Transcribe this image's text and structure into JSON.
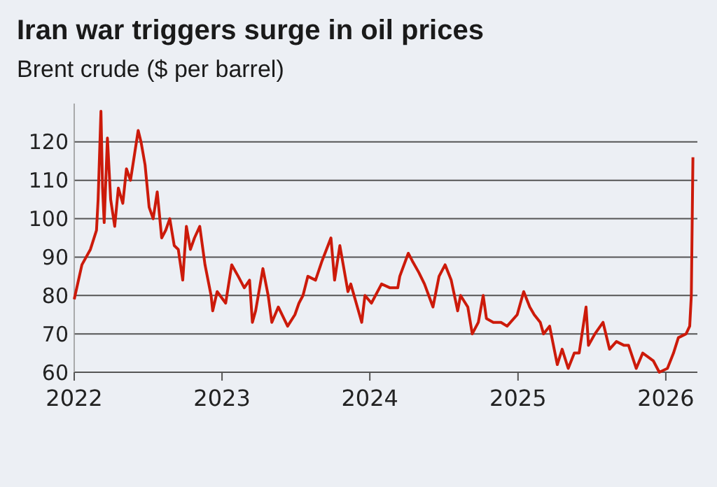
{
  "chart_data": {
    "type": "line",
    "title": "Iran war triggers surge in oil prices",
    "subtitle": "Brent crude ($ per barrel)",
    "x": [
      "2022-01-01",
      "2022-01-20",
      "2022-02-10",
      "2022-02-25",
      "2022-03-01",
      "2022-03-08",
      "2022-03-12",
      "2022-03-16",
      "2022-03-24",
      "2022-04-01",
      "2022-04-11",
      "2022-04-20",
      "2022-05-01",
      "2022-05-10",
      "2022-05-20",
      "2022-06-08",
      "2022-06-15",
      "2022-06-25",
      "2022-07-05",
      "2022-07-15",
      "2022-07-25",
      "2022-08-05",
      "2022-08-15",
      "2022-08-25",
      "2022-09-05",
      "2022-09-15",
      "2022-09-26",
      "2022-10-05",
      "2022-10-15",
      "2022-10-25",
      "2022-11-07",
      "2022-11-20",
      "2022-12-05",
      "2022-12-09",
      "2022-12-20",
      "2023-01-10",
      "2023-01-25",
      "2023-02-10",
      "2023-02-25",
      "2023-03-10",
      "2023-03-17",
      "2023-03-25",
      "2023-04-12",
      "2023-04-25",
      "2023-05-04",
      "2023-05-20",
      "2023-06-12",
      "2023-06-30",
      "2023-07-10",
      "2023-07-20",
      "2023-08-01",
      "2023-08-20",
      "2023-09-05",
      "2023-09-27",
      "2023-10-06",
      "2023-10-19",
      "2023-11-08",
      "2023-11-15",
      "2023-12-12",
      "2023-12-20",
      "2024-01-05",
      "2024-01-30",
      "2024-02-20",
      "2024-03-10",
      "2024-03-15",
      "2024-04-05",
      "2024-04-15",
      "2024-05-01",
      "2024-05-15",
      "2024-06-05",
      "2024-06-20",
      "2024-07-05",
      "2024-07-20",
      "2024-08-05",
      "2024-08-12",
      "2024-08-30",
      "2024-09-10",
      "2024-09-25",
      "2024-10-07",
      "2024-10-15",
      "2024-11-01",
      "2024-11-20",
      "2024-12-05",
      "2024-12-30",
      "2025-01-15",
      "2025-01-30",
      "2025-02-10",
      "2025-02-25",
      "2025-03-05",
      "2025-03-20",
      "2025-04-08",
      "2025-04-20",
      "2025-05-05",
      "2025-05-20",
      "2025-06-01",
      "2025-06-18",
      "2025-06-24",
      "2025-07-10",
      "2025-07-30",
      "2025-08-15",
      "2025-09-01",
      "2025-09-20",
      "2025-10-01",
      "2025-10-20",
      "2025-11-05",
      "2025-12-01",
      "2025-12-16",
      "2026-01-05",
      "2026-01-20",
      "2026-02-01",
      "2026-02-20",
      "2026-03-01",
      "2026-03-05",
      "2026-03-09"
    ],
    "series": [
      {
        "color": "#cc1a0a",
        "values": [
          79,
          88,
          92,
          97,
          105,
          128,
          108,
          99,
          121,
          105,
          98,
          108,
          104,
          113,
          110,
          123,
          120,
          114,
          103,
          100,
          107,
          95,
          97,
          100,
          93,
          92,
          84,
          98,
          92,
          95,
          98,
          88,
          80,
          76,
          81,
          78,
          88,
          85,
          82,
          84,
          73,
          76,
          87,
          80,
          73,
          77,
          72,
          75,
          78,
          80,
          85,
          84,
          89,
          95,
          84,
          93,
          81,
          83,
          73,
          80,
          78,
          83,
          82,
          82,
          85,
          91,
          89,
          86,
          83,
          77,
          85,
          88,
          84,
          76,
          80,
          77,
          70,
          73,
          80,
          74,
          73,
          73,
          72,
          75,
          81,
          77,
          75,
          73,
          70,
          72,
          62,
          66,
          61,
          65,
          65,
          77,
          67,
          70,
          73,
          66,
          68,
          67,
          67,
          61,
          65,
          63,
          60,
          61,
          65,
          69,
          70,
          72,
          80,
          116
        ]
      }
    ],
    "xlim": [
      "2022-01-01",
      "2026-03-20"
    ],
    "xticks": [
      {
        "value": "2022-01-01",
        "label": "2022"
      },
      {
        "value": "2023-01-01",
        "label": "2023"
      },
      {
        "value": "2024-01-01",
        "label": "2024"
      },
      {
        "value": "2025-01-01",
        "label": "2025"
      },
      {
        "value": "2026-01-01",
        "label": "2026"
      }
    ],
    "ylim": [
      60,
      130
    ],
    "yticks": [
      60,
      70,
      80,
      90,
      100,
      110,
      120
    ],
    "grid": "y",
    "line_style": "solid"
  }
}
